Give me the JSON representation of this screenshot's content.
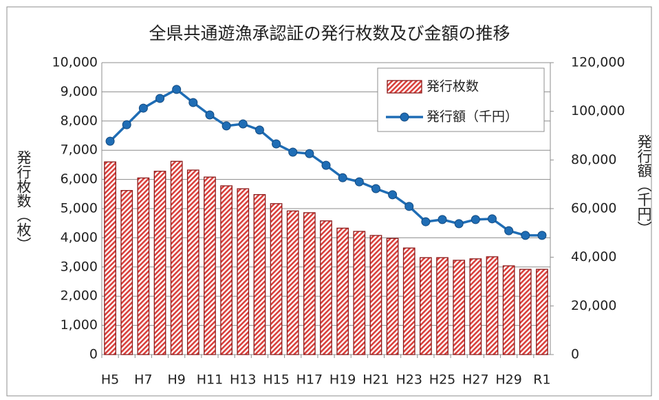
{
  "chart_data": {
    "type": "bar_line",
    "title": "全県共通遊漁承認証の発行枚数及び金額の推移",
    "y_label": "発行枚数（枚）",
    "y2_label": "発行額（千円）",
    "categories": [
      "H5",
      null,
      "H7",
      null,
      "H9",
      null,
      "H11",
      null,
      "H13",
      null,
      "H15",
      null,
      "H17",
      null,
      "H19",
      null,
      "H21",
      null,
      "H23",
      null,
      "H25",
      null,
      "H27",
      null,
      "H29",
      null,
      "R1"
    ],
    "series": [
      {
        "name": "発行枚数",
        "kind": "bar",
        "color": "#c0504d",
        "values": [
          6600,
          5620,
          6050,
          6280,
          6620,
          6320,
          6080,
          5780,
          5680,
          5480,
          5170,
          4920,
          4860,
          4580,
          4330,
          4220,
          4080,
          3980,
          3650,
          3320,
          3320,
          3230,
          3280,
          3350,
          3040,
          2920,
          2920
        ]
      },
      {
        "name": "発行額（千円）",
        "kind": "line",
        "axis": "y2",
        "color": "#1f6db5",
        "values": [
          87700,
          94500,
          101300,
          105300,
          109000,
          103600,
          98500,
          94000,
          94800,
          92300,
          86600,
          83200,
          82600,
          77800,
          72700,
          71000,
          68200,
          65700,
          60900,
          54600,
          55500,
          53800,
          55500,
          55800,
          50900,
          49000,
          49000
        ]
      }
    ],
    "ylim": [
      0,
      10000
    ],
    "yticks": [
      0,
      {
        "value": 1000,
        "label": "1,000"
      },
      {
        "value": 2000,
        "label": "2,000"
      },
      {
        "value": 3000,
        "label": "3,000"
      },
      {
        "value": 4000,
        "label": "4,000"
      },
      {
        "value": 5000,
        "label": "5,000"
      },
      {
        "value": 6000,
        "label": "6,000"
      },
      {
        "value": 7000,
        "label": "7,000"
      },
      {
        "value": 8000,
        "label": "8,000"
      },
      {
        "value": 9000,
        "label": "9,000"
      },
      {
        "value": 10000,
        "label": "10,000"
      }
    ],
    "y2lim": [
      0,
      120000
    ],
    "y2ticks": [
      0,
      {
        "value": 20000,
        "label": "20,000"
      },
      {
        "value": 40000,
        "label": "40,000"
      },
      {
        "value": 60000,
        "label": "60,000"
      },
      {
        "value": 80000,
        "label": "80,000"
      },
      {
        "value": 100000,
        "label": "100,000"
      },
      {
        "value": 120000,
        "label": "120,000"
      }
    ],
    "grid": true,
    "legend": "top-right"
  }
}
